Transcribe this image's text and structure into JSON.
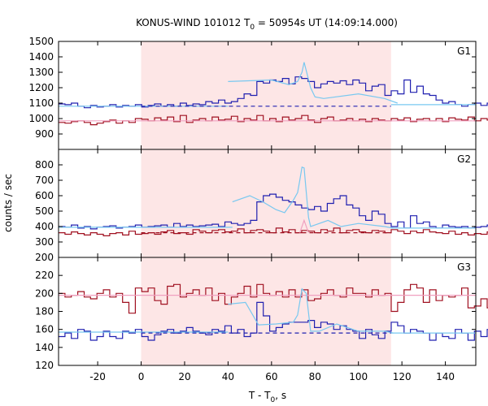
{
  "chart_data": {
    "type": "line",
    "title_main": "KONUS-WIND 101012 T",
    "title_sub": "0",
    "title_rest": " = 50954s UT (14:09:14.000)",
    "ylabel": "counts / sec",
    "xlabel_main": "T - T",
    "xlabel_sub": "0",
    "xlabel_rest": ", s",
    "xlim": [
      -38,
      154
    ],
    "xticks": [
      -20,
      0,
      20,
      40,
      60,
      80,
      100,
      120,
      140
    ],
    "shaded_interval": [
      0,
      115
    ],
    "colors": {
      "shade": "#fde6e6",
      "blue": "#2020b0",
      "light_blue": "#78c8f0",
      "dark_red": "#a01020",
      "pink": "#f0a0c0"
    },
    "panels": [
      {
        "tag": "G1",
        "ylim": [
          800,
          1500
        ],
        "yticks": [
          800,
          900,
          1000,
          1100,
          1200,
          1300,
          1400,
          1500
        ],
        "yticks_shown": [
          900,
          1000,
          1100,
          1200,
          1300,
          1400,
          1500
        ],
        "bin_start": -38,
        "bin_width": 2.944,
        "series": [
          {
            "color": "blue",
            "values": [
              1095,
              1090,
              1100,
              1080,
              1070,
              1085,
              1075,
              1080,
              1090,
              1075,
              1085,
              1080,
              1090,
              1075,
              1085,
              1095,
              1080,
              1090,
              1080,
              1100,
              1085,
              1095,
              1090,
              1110,
              1100,
              1120,
              1100,
              1110,
              1130,
              1160,
              1150,
              1240,
              1230,
              1250,
              1240,
              1260,
              1225,
              1270,
              1260,
              1240,
              1200,
              1225,
              1240,
              1230,
              1245,
              1220,
              1250,
              1230,
              1180,
              1210,
              1220,
              1150,
              1180,
              1160,
              1250,
              1170,
              1210,
              1160,
              1150,
              1120,
              1100,
              1110,
              1090,
              1080,
              1090,
              1100,
              1085,
              1100,
              1090,
              1090,
              1100
            ]
          },
          {
            "color": "light_blue",
            "segments": [
              {
                "x": [
                  -38,
                  0,
                  40
                ],
                "y": [
                  1080,
                  1080,
                  1080
                ]
              },
              {
                "x": [
                  40,
                  60,
                  68,
                  72,
                  74,
                  75,
                  78,
                  80,
                  84,
                  100,
                  112,
                  118
                ],
                "y": [
                  1240,
                  1250,
                  1220,
                  1240,
                  1300,
                  1365,
                  1200,
                  1140,
                  1130,
                  1160,
                  1130,
                  1100
                ]
              },
              {
                "x": [
                  115,
                  154
                ],
                "y": [
                  1090,
                  1090
                ]
              }
            ]
          },
          {
            "color": "dark_red",
            "values": [
              975,
              970,
              980,
              985,
              975,
              960,
              970,
              980,
              990,
              970,
              985,
              975,
              1000,
              995,
              985,
              1005,
              990,
              1010,
              980,
              1020,
              975,
              990,
              1000,
              985,
              1010,
              990,
              995,
              1015,
              980,
              1000,
              990,
              1020,
              985,
              1000,
              980,
              1010,
              990,
              1000,
              1020,
              990,
              975,
              1000,
              1010,
              985,
              990,
              1000,
              985,
              995,
              980,
              1000,
              990,
              985,
              1000,
              990,
              1005,
              980,
              995,
              1000,
              985,
              1000,
              980,
              1005,
              995,
              990,
              1010,
              985,
              1000,
              990,
              1015,
              1005,
              1000
            ]
          },
          {
            "color": "pink",
            "segments": [
              {
                "x": [
                  -38,
                  154
                ],
                "y": [
                  985,
                  985
                ]
              }
            ]
          },
          {
            "color": "blue",
            "dashed": true,
            "segments": [
              {
                "x": [
                  0,
                  115
                ],
                "y": [
                  1080,
                  1080
                ]
              }
            ]
          }
        ]
      },
      {
        "tag": "G2",
        "ylim": [
          200,
          900
        ],
        "yticks": [
          200,
          300,
          400,
          500,
          600,
          700,
          800,
          900
        ],
        "yticks_shown": [
          200,
          300,
          400,
          500,
          600,
          700,
          800
        ],
        "bin_start": -38,
        "bin_width": 2.944,
        "series": [
          {
            "color": "blue",
            "values": [
              400,
              395,
              410,
              390,
              400,
              385,
              395,
              400,
              405,
              390,
              395,
              400,
              410,
              395,
              400,
              405,
              410,
              395,
              420,
              400,
              410,
              400,
              405,
              410,
              415,
              400,
              430,
              420,
              410,
              420,
              440,
              560,
              600,
              610,
              590,
              570,
              560,
              540,
              520,
              510,
              530,
              500,
              550,
              580,
              600,
              540,
              520,
              470,
              440,
              500,
              480,
              420,
              400,
              430,
              390,
              470,
              420,
              430,
              400,
              390,
              410,
              400,
              395,
              400,
              390,
              395,
              400,
              410,
              390,
              400,
              380
            ]
          },
          {
            "color": "light_blue",
            "segments": [
              {
                "x": [
                  -38,
                  0,
                  42
                ],
                "y": [
                  395,
                  395,
                  395
                ]
              },
              {
                "x": [
                  42,
                  50,
                  56,
                  62,
                  66,
                  70,
                  72,
                  73,
                  74,
                  75,
                  76,
                  77,
                  78,
                  80,
                  86,
                  92,
                  100,
                  112,
                  116
                ],
                "y": [
                  560,
                  600,
                  560,
                  510,
                  490,
                  570,
                  620,
                  700,
                  785,
                  780,
                  620,
                  460,
                  400,
                  410,
                  440,
                  400,
                  420,
                  400,
                  390
                ]
              },
              {
                "x": [
                  115,
                  154
                ],
                "y": [
                  390,
                  390
                ]
              }
            ]
          },
          {
            "color": "dark_red",
            "values": [
              360,
              350,
              365,
              355,
              345,
              360,
              350,
              340,
              355,
              360,
              345,
              370,
              350,
              355,
              360,
              350,
              365,
              375,
              355,
              360,
              350,
              380,
              370,
              360,
              375,
              380,
              365,
              370,
              385,
              360,
              375,
              380,
              370,
              360,
              390,
              365,
              380,
              360,
              375,
              370,
              360,
              380,
              370,
              390,
              360,
              375,
              380,
              365,
              360,
              375,
              370,
              360,
              380,
              370,
              355,
              370,
              360,
              380,
              365,
              360,
              355,
              370,
              350,
              360,
              345,
              355,
              350,
              365,
              355,
              360,
              355
            ]
          },
          {
            "color": "pink",
            "segments": [
              {
                "x": [
                  73,
                  75,
                  77
                ],
                "y": [
                  360,
                  440,
                  360
                ]
              }
            ]
          },
          {
            "color": "dark_red",
            "dashed": true,
            "segments": [
              {
                "x": [
                  0,
                  115
                ],
                "y": [
                  360,
                  360
                ]
              }
            ]
          }
        ]
      },
      {
        "tag": "G3",
        "ylim": [
          120,
          240
        ],
        "yticks": [
          120,
          140,
          160,
          180,
          200,
          220,
          240
        ],
        "yticks_shown": [
          120,
          140,
          160,
          180,
          200,
          220
        ],
        "bin_start": -38,
        "bin_width": 2.944,
        "series": [
          {
            "color": "dark_red",
            "values": [
              200,
              196,
              198,
              202,
              196,
              194,
              200,
              204,
              196,
              200,
              190,
              178,
              206,
              202,
              206,
              192,
              188,
              208,
              210,
              196,
              200,
              204,
              198,
              206,
              192,
              200,
              188,
              196,
              200,
              208,
              196,
              210,
              200,
              198,
              202,
              196,
              204,
              196,
              204,
              192,
              194,
              200,
              204,
              198,
              196,
              206,
              200,
              200,
              196,
              204,
              198,
              200,
              180,
              190,
              204,
              210,
              206,
              190,
              204,
              192,
              198,
              196,
              198,
              206,
              184,
              186,
              194,
              184,
              180,
              190,
              190
            ]
          },
          {
            "color": "pink",
            "segments": [
              {
                "x": [
                  -38,
                  154
                ],
                "y": [
                  198,
                  198
                ]
              }
            ]
          },
          {
            "color": "blue",
            "values": [
              152,
              156,
              150,
              160,
              158,
              148,
              152,
              158,
              152,
              150,
              158,
              156,
              160,
              152,
              148,
              154,
              158,
              160,
              156,
              158,
              162,
              158,
              156,
              154,
              160,
              158,
              164,
              156,
              160,
              152,
              156,
              190,
              175,
              158,
              162,
              166,
              168,
              168,
              168,
              170,
              162,
              168,
              166,
              160,
              164,
              160,
              158,
              150,
              160,
              154,
              150,
              158,
              168,
              164,
              156,
              160,
              158,
              156,
              148,
              156,
              152,
              150,
              160,
              156,
              148,
              158,
              152,
              160,
              156,
              148,
              150
            ]
          },
          {
            "color": "light_blue",
            "segments": [
              {
                "x": [
                  -38,
                  0,
                  40
                ],
                "y": [
                  157,
                  157,
                  157
                ]
              },
              {
                "x": [
                  40,
                  48,
                  54,
                  62,
                  70,
                  72,
                  74,
                  76,
                  78,
                  82,
                  90,
                  100,
                  112,
                  116
                ],
                "y": [
                  188,
                  190,
                  165,
                  166,
                  168,
                  176,
                  205,
                  200,
                  158,
                  158,
                  166,
                  158,
                  158,
                  156
                ]
              },
              {
                "x": [
                  115,
                  154
                ],
                "y": [
                  156,
                  156
                ]
              }
            ]
          },
          {
            "color": "blue",
            "dashed": true,
            "segments": [
              {
                "x": [
                  0,
                  115
                ],
                "y": [
                  156,
                  156
                ]
              }
            ]
          }
        ]
      }
    ]
  }
}
